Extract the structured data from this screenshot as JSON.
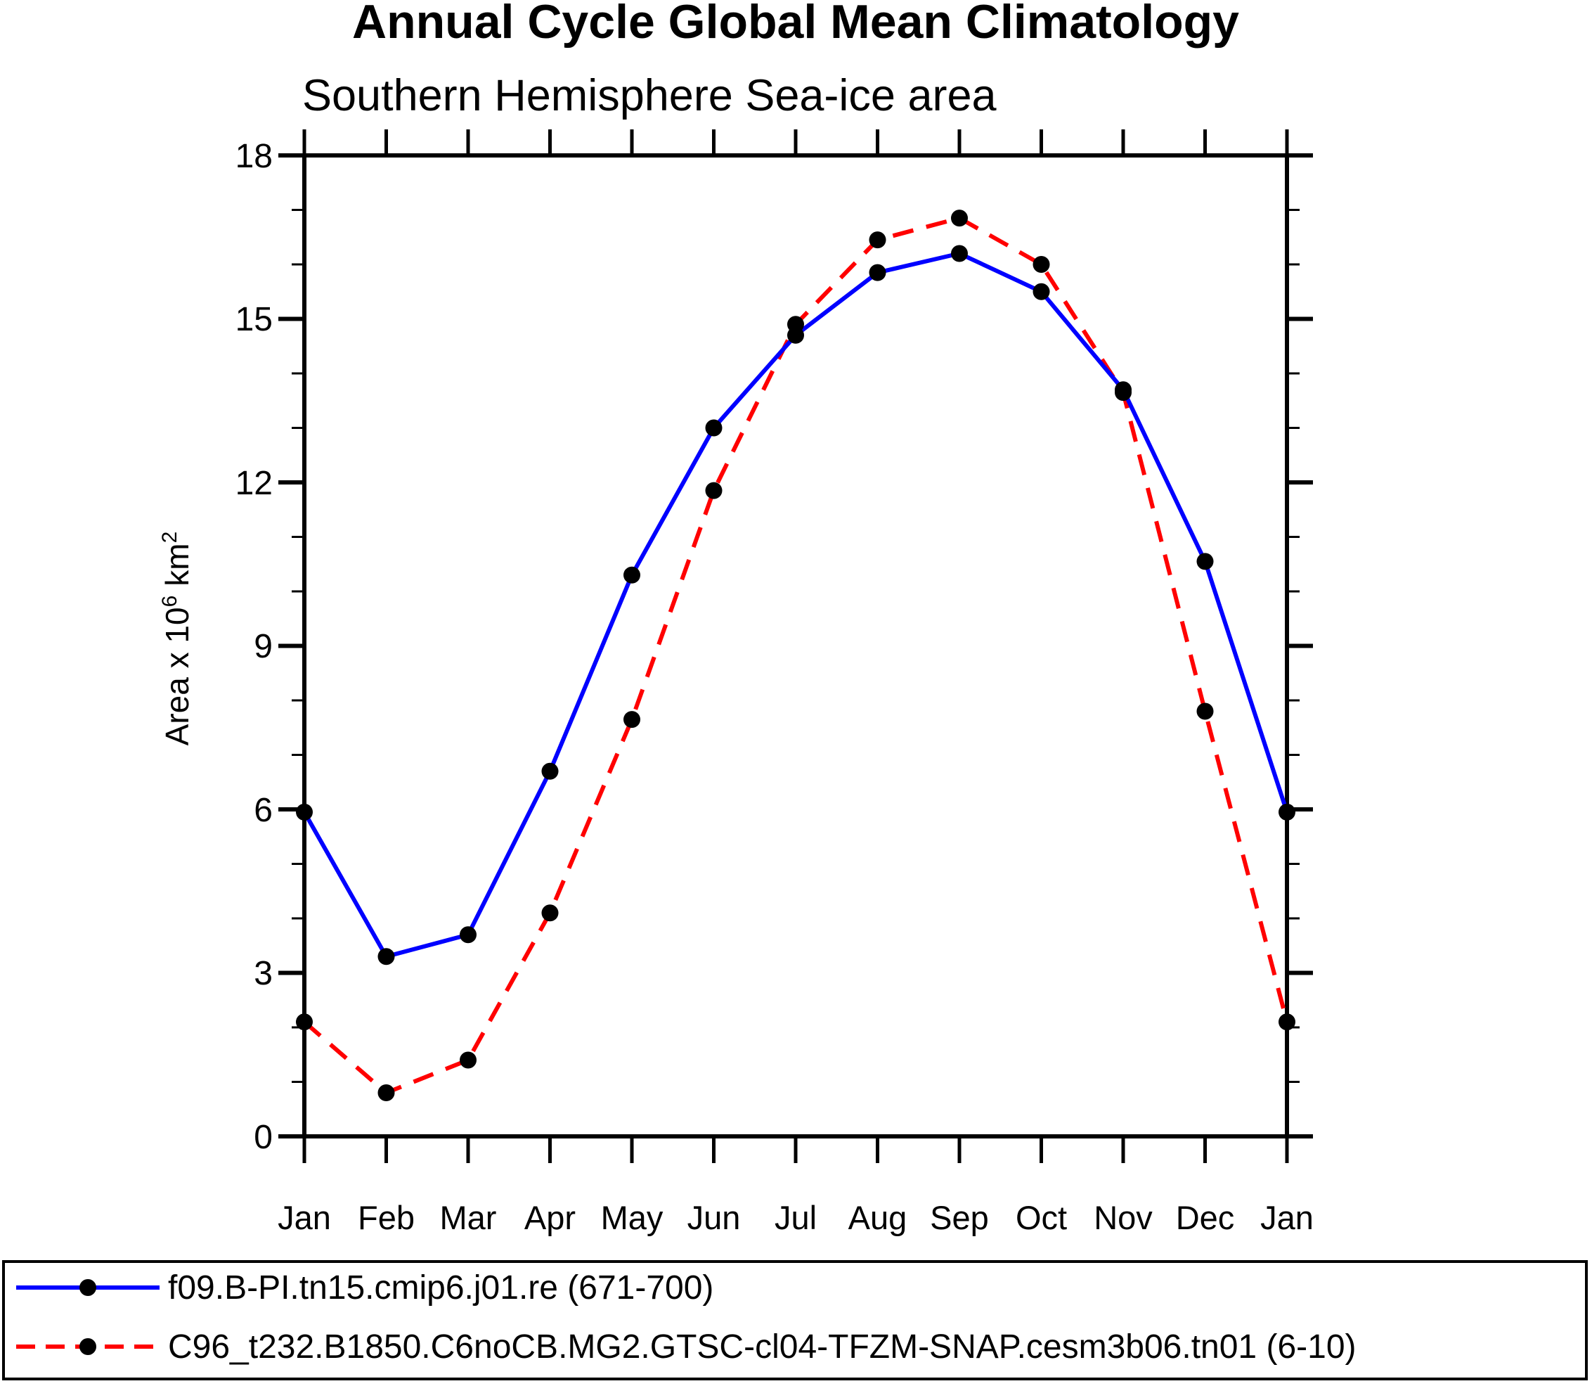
{
  "title": "Annual Cycle Global Mean Climatology",
  "subtitle": "Southern Hemisphere Sea-ice area",
  "chart_data": {
    "type": "line",
    "categories": [
      "Jan",
      "Feb",
      "Mar",
      "Apr",
      "May",
      "Jun",
      "Jul",
      "Aug",
      "Sep",
      "Oct",
      "Nov",
      "Dec",
      "Jan"
    ],
    "series": [
      {
        "name": "f09.B-PI.tn15.cmip6.j01.re (671-700)",
        "color": "#0000ff",
        "line_style": "solid",
        "marker": "filled-circle",
        "marker_color": "#000000",
        "values": [
          5.95,
          3.3,
          3.7,
          6.7,
          10.3,
          13.0,
          14.7,
          15.85,
          16.2,
          15.5,
          13.7,
          10.55,
          5.95
        ]
      },
      {
        "name": "C96_t232.B1850.C6noCB.MG2.GTSC-cl04-TFZM-SNAP.cesm3b06.tn01 (6-10)",
        "color": "#ff0000",
        "line_style": "dashed",
        "marker": "filled-circle",
        "marker_color": "#000000",
        "values": [
          2.1,
          0.8,
          1.4,
          4.1,
          7.65,
          11.85,
          14.9,
          16.45,
          16.85,
          16.0,
          13.65,
          7.8,
          2.1
        ]
      }
    ],
    "xlabel": "",
    "ylabel_parts": {
      "pre": "Area x 10",
      "sup1": "6",
      "mid": "km",
      "sup2": "2"
    },
    "yticks": [
      "0",
      "3",
      "6",
      "9",
      "12",
      "15",
      "18"
    ],
    "ylim": [
      0,
      18
    ],
    "ytick_step": 3,
    "minor_tick_step": 1,
    "grid": false,
    "legend_position": "bottom",
    "axis_color": "#000000"
  }
}
